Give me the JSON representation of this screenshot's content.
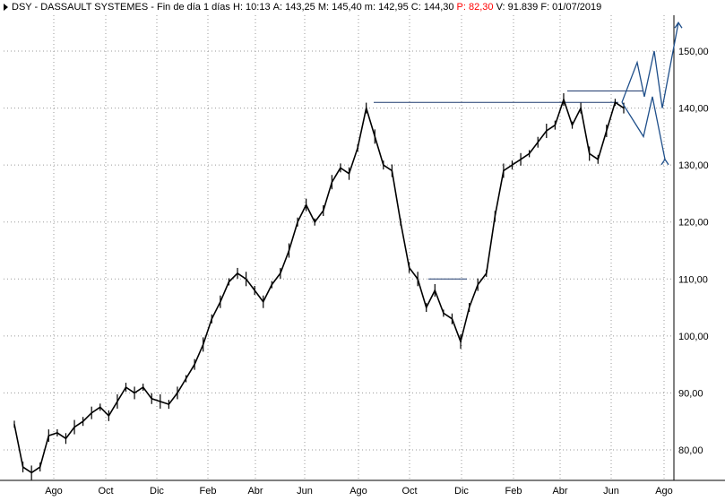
{
  "header": {
    "symbol": "DSY - DASSAULT SYSTEMES - Fin de día 1 días",
    "high": "H: 10:13",
    "open": "A: 143,25",
    "max": "M: 145,40",
    "min": "m: 142,95",
    "close": "C: 144,30",
    "pct": "P: 82,30",
    "volume": "V: 91.839",
    "date": "F: 01/07/2019"
  },
  "colors": {
    "price": "#000000",
    "trend_line": "#1f3a6e",
    "projection": "#1f4f8a",
    "grid": "#9a9a9a",
    "accent_red": "#ff0000"
  },
  "chart_data": {
    "type": "line",
    "title": "DSY - DASSAULT SYSTEMES",
    "x_tick_labels": [
      "Ago",
      "Oct",
      "Dic",
      "Feb",
      "Abr",
      "Jun",
      "Ago",
      "Oct",
      "Dic",
      "Feb",
      "Abr",
      "Jun",
      "Ago"
    ],
    "y_tick_labels": [
      "80,00",
      "90,00",
      "100,00",
      "110,00",
      "120,00",
      "130,00",
      "140,00",
      "150,00"
    ],
    "ylim": [
      75,
      156
    ],
    "grid": true,
    "series": [
      {
        "name": "",
        "points": [
          [
            0,
            84.5
          ],
          [
            1,
            77
          ],
          [
            2,
            76
          ],
          [
            3,
            77
          ],
          [
            4,
            82.5
          ],
          [
            5,
            83
          ],
          [
            6,
            82
          ],
          [
            7,
            84
          ],
          [
            8,
            85
          ],
          [
            9,
            86.5
          ],
          [
            10,
            87.5
          ],
          [
            11,
            86
          ],
          [
            12,
            88.5
          ],
          [
            13,
            91
          ],
          [
            14,
            90
          ],
          [
            15,
            91
          ],
          [
            16,
            89
          ],
          [
            17,
            88.5
          ],
          [
            18,
            88
          ],
          [
            19,
            90
          ],
          [
            20,
            92.5
          ],
          [
            21,
            95
          ],
          [
            22,
            98.5
          ],
          [
            23,
            103
          ],
          [
            24,
            106
          ],
          [
            25,
            109.5
          ],
          [
            26,
            111
          ],
          [
            27,
            110
          ],
          [
            28,
            108
          ],
          [
            29,
            106
          ],
          [
            30,
            109
          ],
          [
            31,
            111
          ],
          [
            32,
            115
          ],
          [
            33,
            120
          ],
          [
            34,
            123
          ],
          [
            35,
            120
          ],
          [
            36,
            122
          ],
          [
            37,
            127
          ],
          [
            38,
            129.5
          ],
          [
            39,
            128.5
          ],
          [
            40,
            133
          ],
          [
            41,
            140
          ],
          [
            42,
            135
          ],
          [
            43,
            130
          ],
          [
            44,
            129
          ],
          [
            45,
            120
          ],
          [
            46,
            112
          ],
          [
            47,
            110
          ],
          [
            48,
            105
          ],
          [
            49,
            108
          ],
          [
            50,
            104
          ],
          [
            51,
            103
          ],
          [
            52,
            99
          ],
          [
            53,
            105
          ],
          [
            54,
            109
          ],
          [
            55,
            111
          ],
          [
            56,
            121
          ],
          [
            57,
            129
          ],
          [
            58,
            130
          ],
          [
            59,
            131
          ],
          [
            60,
            132
          ],
          [
            61,
            134
          ],
          [
            62,
            136
          ],
          [
            63,
            137
          ],
          [
            64,
            141.5
          ],
          [
            65,
            137
          ],
          [
            66,
            140
          ],
          [
            67,
            132
          ],
          [
            68,
            131
          ],
          [
            69,
            136
          ],
          [
            70,
            141
          ],
          [
            71,
            140
          ]
        ]
      }
    ],
    "annotations": {
      "resistance_level": 141,
      "range_top": 110,
      "recent_high": 143,
      "projection_upper": [
        141,
        148,
        142,
        150,
        140,
        155
      ],
      "projection_lower": [
        141,
        135,
        142,
        131
      ]
    }
  }
}
